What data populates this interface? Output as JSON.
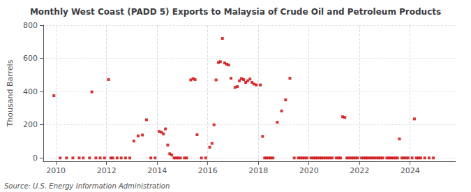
{
  "chart_data": {
    "type": "scatter",
    "title": "Monthly West Coast (PADD 5) Exports to Malaysia of Crude Oil and Petroleum Products",
    "ylabel": "Thousand Barrels",
    "annotations": [
      "Source: U.S. Energy Information Administration"
    ],
    "color": "#cc0000",
    "marker": "square",
    "grid": true,
    "xlim": [
      2009.5,
      2025.8
    ],
    "xticks": [
      2010,
      2012,
      2014,
      2016,
      2018,
      2020,
      2022,
      2024
    ],
    "ylim": [
      -20,
      800
    ],
    "yticks": [
      0,
      200,
      400,
      600,
      800
    ],
    "x": [
      2009.92,
      2010.17,
      2010.42,
      2010.67,
      2010.92,
      2011.08,
      2011.33,
      2011.42,
      2011.58,
      2011.75,
      2011.92,
      2012.08,
      2012.17,
      2012.25,
      2012.42,
      2012.58,
      2012.75,
      2012.92,
      2013.08,
      2013.25,
      2013.42,
      2013.58,
      2013.75,
      2013.92,
      2014.08,
      2014.17,
      2014.25,
      2014.33,
      2014.42,
      2014.5,
      2014.58,
      2014.67,
      2014.75,
      2014.83,
      2014.92,
      2015.08,
      2015.17,
      2015.33,
      2015.42,
      2015.5,
      2015.58,
      2015.75,
      2015.92,
      2016.08,
      2016.17,
      2016.25,
      2016.33,
      2016.42,
      2016.5,
      2016.58,
      2016.67,
      2016.75,
      2016.83,
      2016.92,
      2017.08,
      2017.17,
      2017.25,
      2017.33,
      2017.42,
      2017.5,
      2017.58,
      2017.67,
      2017.75,
      2017.83,
      2017.92,
      2018.08,
      2018.17,
      2018.25,
      2018.33,
      2018.42,
      2018.5,
      2018.58,
      2018.75,
      2018.92,
      2019.08,
      2019.25,
      2019.42,
      2019.58,
      2019.67,
      2019.75,
      2019.83,
      2019.92,
      2020.08,
      2020.17,
      2020.25,
      2020.33,
      2020.42,
      2020.5,
      2020.58,
      2020.67,
      2020.75,
      2020.83,
      2020.92,
      2021.08,
      2021.17,
      2021.25,
      2021.33,
      2021.42,
      2021.5,
      2021.58,
      2021.67,
      2021.75,
      2021.83,
      2021.92,
      2022.08,
      2022.17,
      2022.25,
      2022.33,
      2022.42,
      2022.5,
      2022.58,
      2022.67,
      2022.75,
      2022.83,
      2022.92,
      2023.08,
      2023.17,
      2023.25,
      2023.33,
      2023.42,
      2023.5,
      2023.58,
      2023.67,
      2023.75,
      2023.83,
      2023.92,
      2024.08,
      2024.17,
      2024.25,
      2024.33,
      2024.42,
      2024.58,
      2024.75,
      2024.92
    ],
    "values": [
      375,
      0,
      0,
      0,
      0,
      0,
      0,
      398,
      0,
      0,
      0,
      472,
      0,
      0,
      0,
      0,
      0,
      0,
      102,
      133,
      138,
      230,
      0,
      0,
      160,
      155,
      145,
      175,
      78,
      25,
      18,
      0,
      0,
      0,
      0,
      0,
      0,
      470,
      478,
      472,
      140,
      0,
      0,
      65,
      88,
      200,
      470,
      575,
      580,
      720,
      572,
      565,
      560,
      480,
      425,
      430,
      465,
      478,
      472,
      455,
      465,
      475,
      455,
      445,
      440,
      440,
      130,
      0,
      0,
      0,
      0,
      0,
      215,
      283,
      350,
      480,
      0,
      0,
      0,
      0,
      0,
      0,
      0,
      0,
      0,
      0,
      0,
      0,
      0,
      0,
      0,
      0,
      0,
      0,
      0,
      0,
      248,
      244,
      0,
      0,
      0,
      0,
      0,
      0,
      0,
      0,
      0,
      0,
      0,
      0,
      0,
      0,
      0,
      0,
      0,
      0,
      0,
      0,
      0,
      0,
      0,
      115,
      0,
      0,
      0,
      0,
      0,
      235,
      0,
      0,
      0,
      0,
      0,
      0
    ]
  }
}
